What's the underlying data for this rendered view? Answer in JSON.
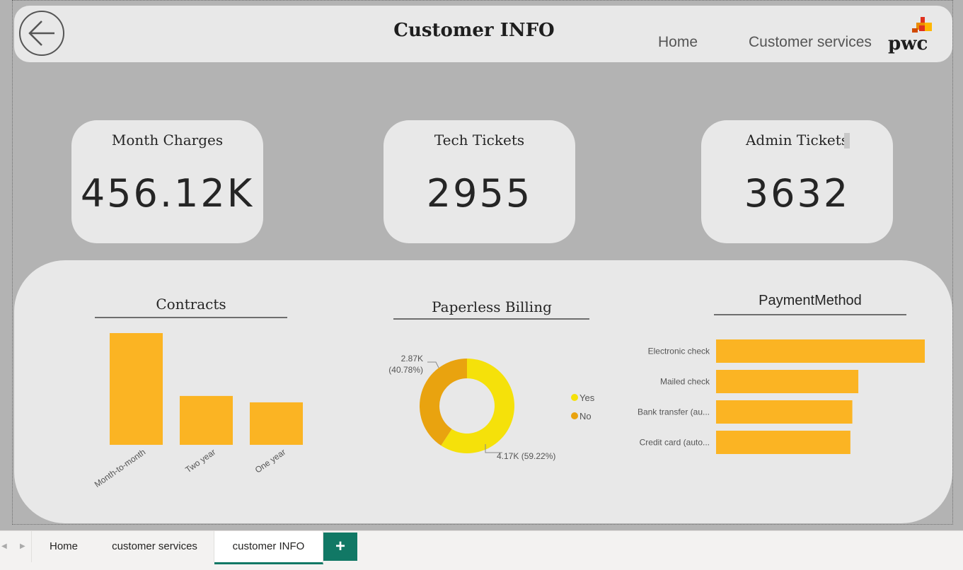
{
  "header": {
    "title": "Customer INFO",
    "nav": [
      {
        "label": "Home"
      },
      {
        "label": "Customer services"
      }
    ],
    "logo_text": "pwc"
  },
  "kpis": [
    {
      "label": "Month Charges",
      "value": "456.12K"
    },
    {
      "label": "Tech Tickets",
      "value": "2955"
    },
    {
      "label": "Admin Tickets",
      "value": "3632"
    }
  ],
  "colors": {
    "bar": "#fbb423",
    "donut_yes": "#f5e10a",
    "donut_no": "#e9a30f",
    "tab_accent": "#117865"
  },
  "chart_data": [
    {
      "type": "bar",
      "title": "Contracts",
      "categories": [
        "Month-to-month",
        "Two year",
        "One year"
      ],
      "values": [
        3875,
        1695,
        1473
      ]
    },
    {
      "type": "pie",
      "title": "Paperless Billing",
      "categories": [
        "Yes",
        "No"
      ],
      "values": [
        4170,
        2870
      ],
      "labels": [
        "4.17K (59.22%)",
        "2.87K (40.78%)"
      ],
      "legend": "right"
    },
    {
      "type": "bar",
      "orientation": "horizontal",
      "title": "PaymentMethod",
      "categories": [
        "Electronic check",
        "Mailed check",
        "Bank transfer (au...",
        "Credit card (auto..."
      ],
      "values": [
        2365,
        1612,
        1544,
        1522
      ]
    }
  ],
  "tabs": [
    {
      "label": "Home"
    },
    {
      "label": "customer services"
    },
    {
      "label": "customer INFO"
    }
  ],
  "add_tab_label": "+"
}
